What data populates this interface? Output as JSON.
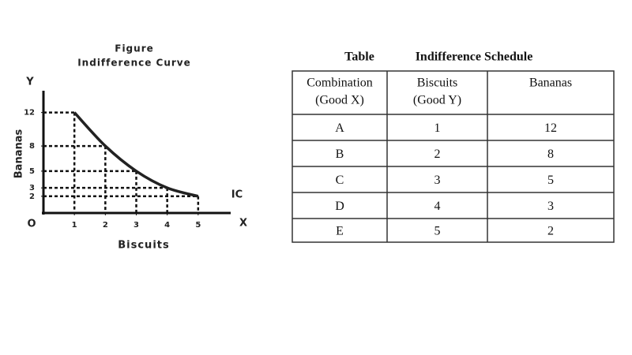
{
  "chart_data": {
    "type": "line",
    "title": "Figure",
    "subtitle": "Indifference Curve",
    "x_label": "Biscuits",
    "y_label": "Bananas",
    "axis_letters": {
      "x": "X",
      "y": "Y",
      "origin": "O"
    },
    "curve_label": "IC",
    "x": [
      1,
      2,
      3,
      4,
      5
    ],
    "values": [
      12,
      8,
      5,
      3,
      2
    ],
    "color": "#222222",
    "xlim": [
      0,
      6
    ],
    "ylim": [
      0,
      13
    ],
    "xticks": [
      1,
      2,
      3,
      4,
      5
    ],
    "yticks": [
      2,
      3,
      5,
      8,
      12
    ]
  },
  "table": {
    "title": "Table",
    "subtitle": "Indifference Schedule",
    "header": [
      [
        "Combination",
        "(Good X)"
      ],
      [
        "Biscuits",
        "(Good Y)"
      ],
      [
        "Bananas"
      ]
    ],
    "rows": [
      [
        "A",
        1,
        12
      ],
      [
        "B",
        2,
        8
      ],
      [
        "C",
        3,
        5
      ],
      [
        "D",
        4,
        3
      ],
      [
        "E",
        5,
        2
      ]
    ]
  }
}
